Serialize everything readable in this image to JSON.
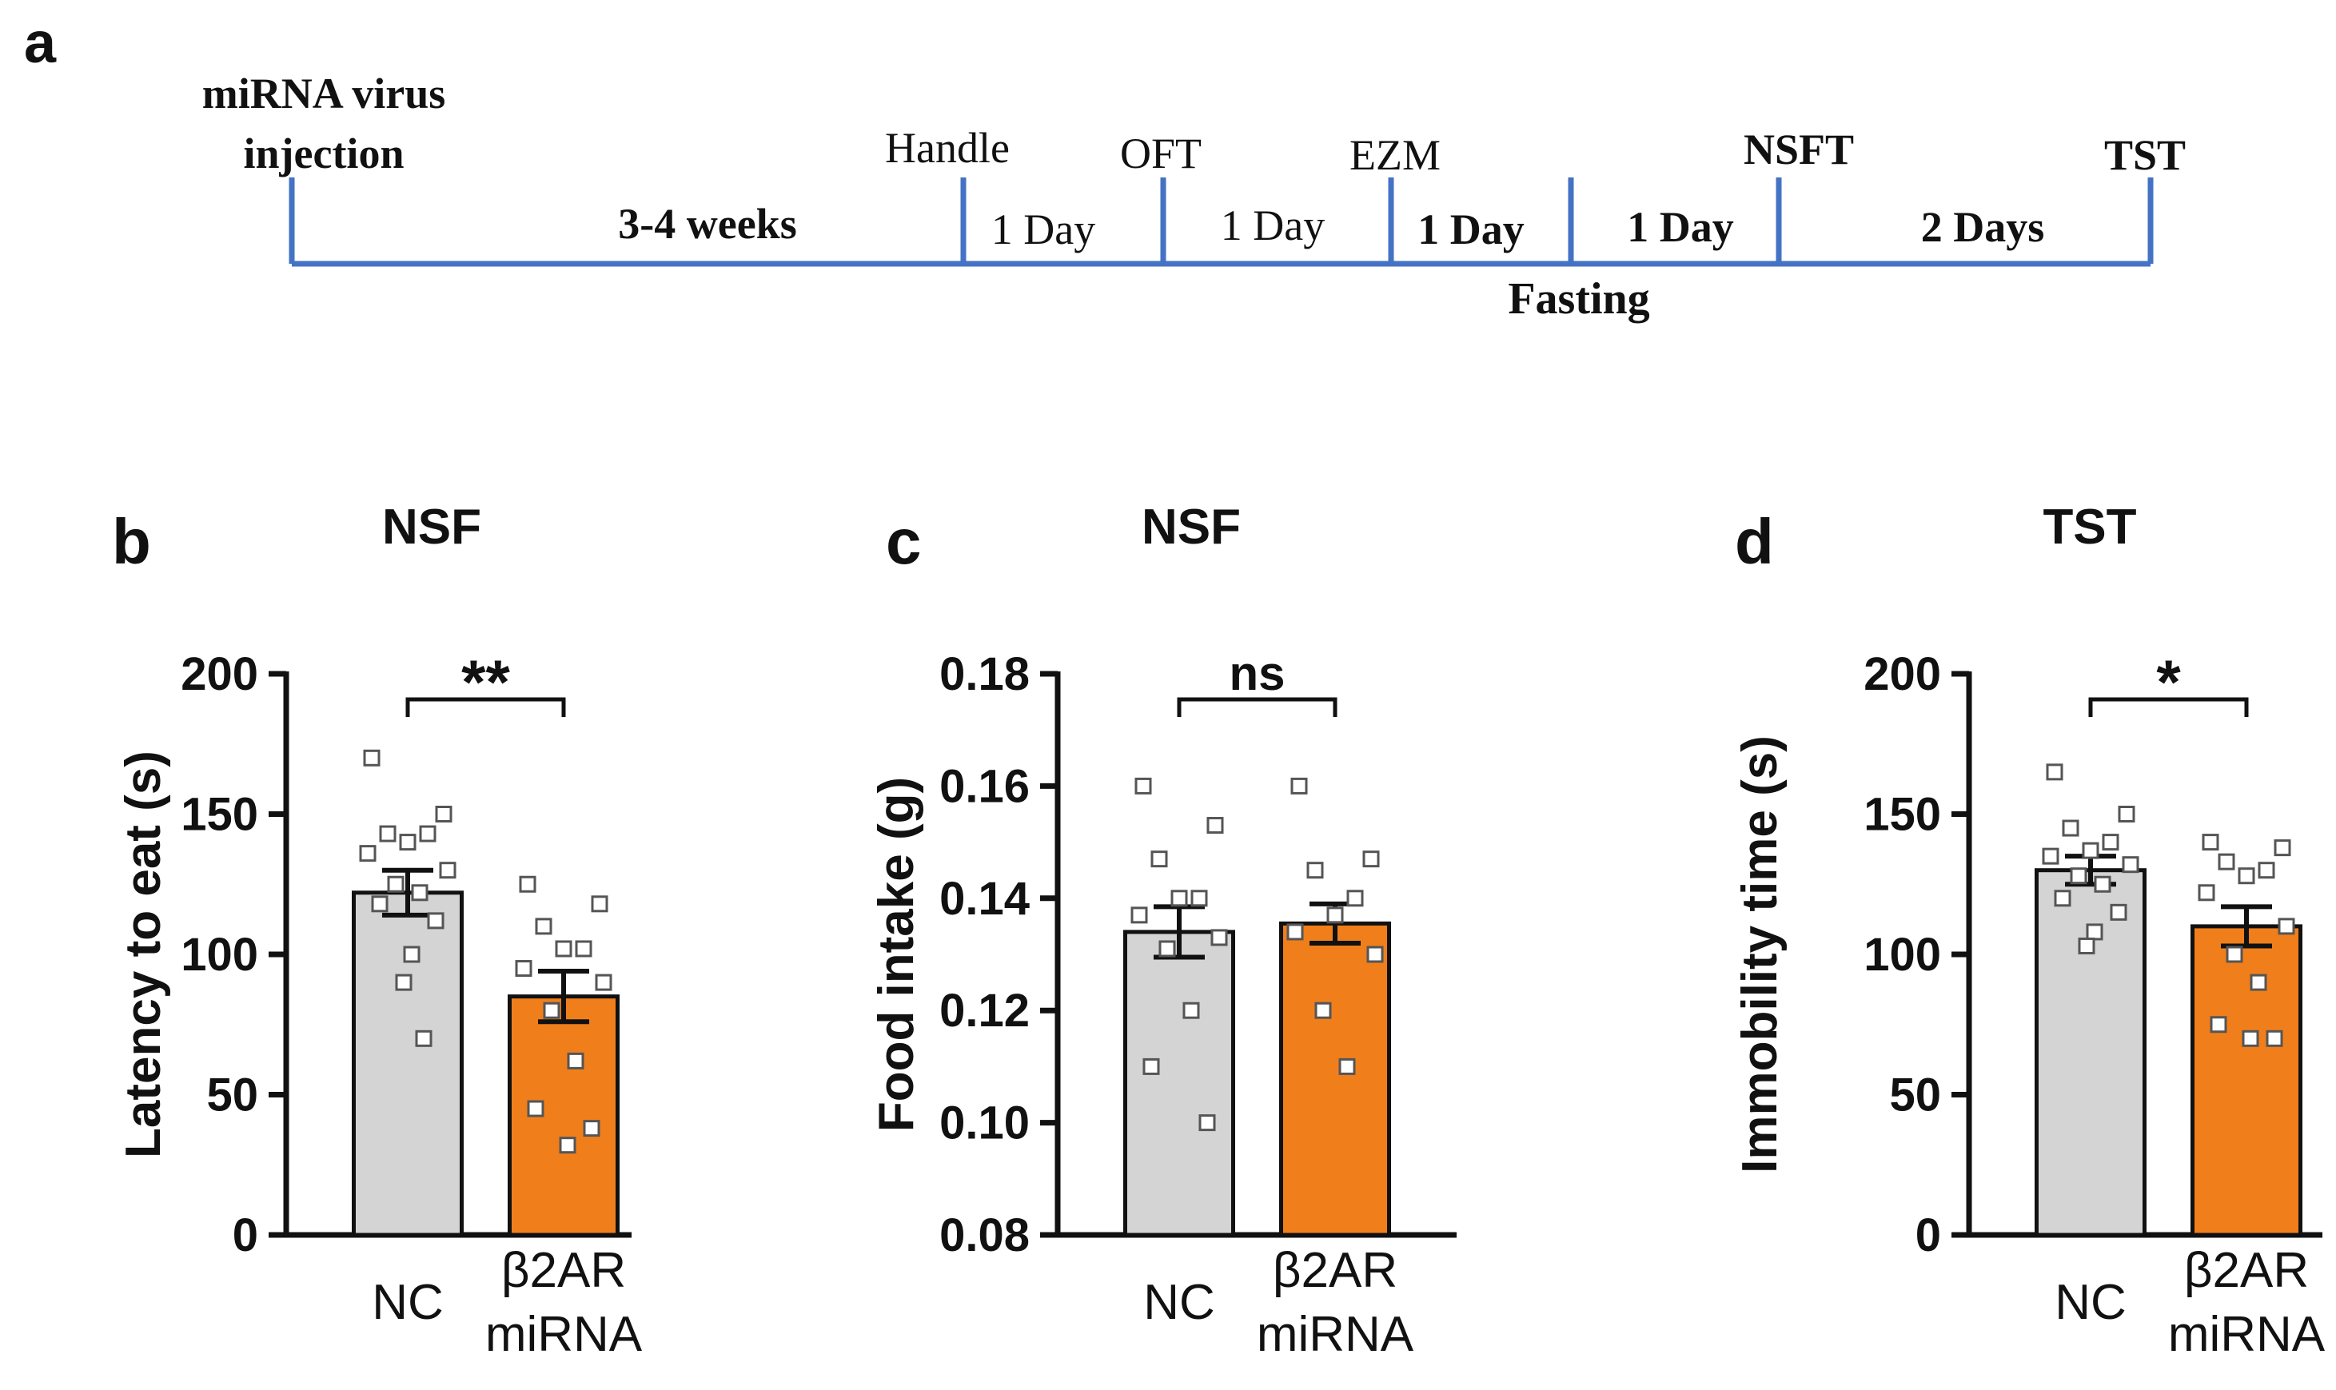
{
  "panel_letters": {
    "a": "a",
    "b": "b",
    "c": "c",
    "d": "d"
  },
  "timeline": {
    "line_color": "#4472c4",
    "events": [
      {
        "label_lines": [
          "miRNA virus",
          "injection"
        ],
        "bold": true
      },
      {
        "label_lines": [
          "Handle"
        ],
        "bold": false
      },
      {
        "label_lines": [
          "OFT"
        ],
        "bold": false
      },
      {
        "label_lines": [
          "EZM"
        ],
        "bold": false
      },
      {
        "label_lines": [
          "NSFT"
        ],
        "bold": true
      },
      {
        "label_lines": [
          "TST"
        ],
        "bold": true
      }
    ],
    "intervals": [
      {
        "label": "3-4 weeks",
        "bold": true
      },
      {
        "label": "1 Day",
        "bold": false
      },
      {
        "label": "1 Day",
        "bold": false
      },
      {
        "label": "1 Day",
        "bold": true
      },
      {
        "label": "1 Day",
        "bold": true
      },
      {
        "label": "2 Days",
        "bold": true
      }
    ],
    "fasting_label": "Fasting"
  },
  "chart_data": [
    {
      "panel": "b",
      "type": "bar",
      "title": "NSF",
      "ylabel": "Latency to eat (s)",
      "ylim": [
        0,
        200
      ],
      "yticks": [
        "0",
        "50",
        "100",
        "150",
        "200"
      ],
      "categories": [
        [
          "NC"
        ],
        [
          "β2AR",
          "miRNA"
        ]
      ],
      "colors": [
        "#d4d4d4",
        "#f07f1b"
      ],
      "values": [
        122,
        85
      ],
      "sem": [
        8,
        9
      ],
      "points": [
        [
          170,
          150,
          143,
          143,
          140,
          136,
          130,
          125,
          122,
          118,
          112,
          100,
          90,
          70
        ],
        [
          125,
          118,
          110,
          102,
          102,
          95,
          90,
          80,
          62,
          45,
          38,
          32
        ]
      ],
      "significance": "**"
    },
    {
      "panel": "c",
      "type": "bar",
      "title": "NSF",
      "ylabel": "Food intake (g)",
      "ylim": [
        0.08,
        0.18
      ],
      "yticks": [
        "0.08",
        "0.10",
        "0.12",
        "0.14",
        "0.16",
        "0.18"
      ],
      "categories": [
        [
          "NC"
        ],
        [
          "β2AR",
          "miRNA"
        ]
      ],
      "colors": [
        "#d4d4d4",
        "#f07f1b"
      ],
      "values": [
        0.134,
        0.1355
      ],
      "sem": [
        0.0045,
        0.0035
      ],
      "points": [
        [
          0.16,
          0.153,
          0.147,
          0.14,
          0.14,
          0.137,
          0.133,
          0.131,
          0.12,
          0.11,
          0.1
        ],
        [
          0.16,
          0.147,
          0.145,
          0.14,
          0.137,
          0.134,
          0.13,
          0.12,
          0.11
        ]
      ],
      "significance": "ns"
    },
    {
      "panel": "d",
      "type": "bar",
      "title": "TST",
      "ylabel": "Immobility time (s)",
      "ylim": [
        0,
        200
      ],
      "yticks": [
        "0",
        "50",
        "100",
        "150",
        "200"
      ],
      "categories": [
        [
          "NC"
        ],
        [
          "β2AR",
          "miRNA"
        ]
      ],
      "colors": [
        "#d4d4d4",
        "#f07f1b"
      ],
      "values": [
        130,
        110
      ],
      "sem": [
        5,
        7
      ],
      "points": [
        [
          165,
          150,
          145,
          140,
          137,
          135,
          132,
          128,
          125,
          120,
          115,
          108,
          103
        ],
        [
          140,
          138,
          133,
          130,
          128,
          122,
          110,
          100,
          90,
          75,
          70,
          70
        ]
      ],
      "significance": "*"
    }
  ]
}
